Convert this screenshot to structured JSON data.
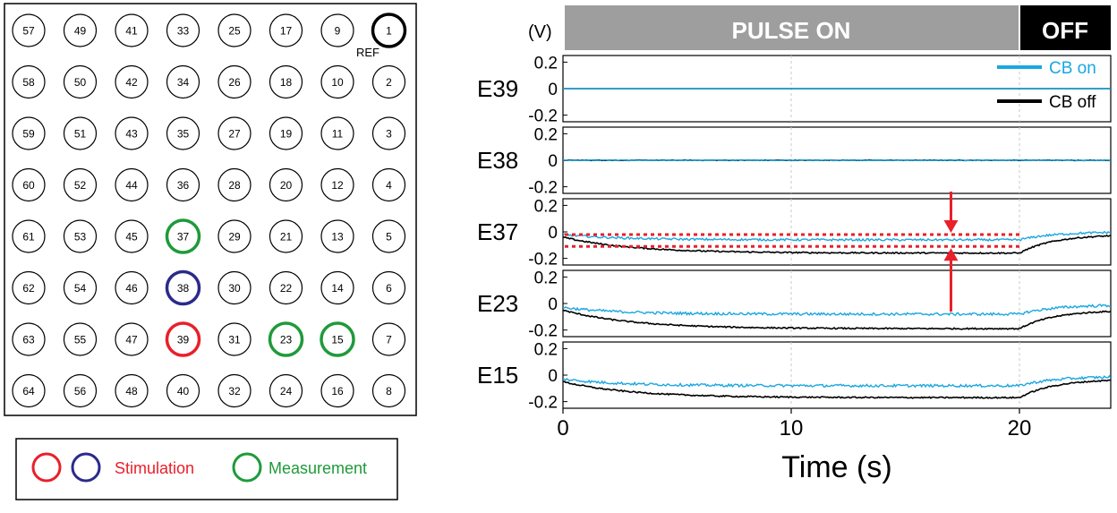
{
  "grid": {
    "rows": [
      [
        57,
        49,
        41,
        33,
        25,
        17,
        9,
        1
      ],
      [
        58,
        50,
        42,
        34,
        26,
        18,
        10,
        2
      ],
      [
        59,
        51,
        43,
        35,
        27,
        19,
        11,
        3
      ],
      [
        60,
        52,
        44,
        36,
        28,
        20,
        12,
        4
      ],
      [
        61,
        53,
        45,
        37,
        29,
        21,
        13,
        5
      ],
      [
        62,
        54,
        46,
        38,
        30,
        22,
        14,
        6
      ],
      [
        63,
        55,
        47,
        39,
        31,
        23,
        15,
        7
      ],
      [
        64,
        56,
        48,
        40,
        32,
        24,
        16,
        8
      ]
    ],
    "ref_label": "REF",
    "ref_electrode": 1,
    "stimulation_red": [
      39
    ],
    "stimulation_blue": [
      38
    ],
    "measurement": [
      37,
      23,
      15
    ]
  },
  "legend_box": {
    "stimulation_label": "Stimulation",
    "measurement_label": "Measurement"
  },
  "colors": {
    "stim_red": "#e8202a",
    "stim_blue": "#2a2a8c",
    "measure_green": "#1f9a3a",
    "ref_black": "#000000",
    "cb_on": "#1aa7e0",
    "cb_off": "#000000",
    "pulse_bar": "#9e9e9e",
    "off_bar": "#000000",
    "annotation_red": "#e8202a"
  },
  "chart_data": {
    "type": "line",
    "unit_label": "(V)",
    "xlabel": "Time (s)",
    "xlim": [
      0,
      24
    ],
    "xticks": [
      0,
      10,
      20
    ],
    "ylim": [
      -0.25,
      0.25
    ],
    "yticks": [
      0.2,
      0,
      -0.2
    ],
    "ytick_labels": [
      "0.2",
      "0",
      "-0.2"
    ],
    "phases": [
      {
        "label": "PULSE ON",
        "start": 0,
        "end": 20
      },
      {
        "label": "OFF",
        "start": 20,
        "end": 24
      }
    ],
    "series_names": [
      "CB on",
      "CB off"
    ],
    "panels": [
      {
        "label": "E39",
        "cb_on": {
          "initial": 0.0,
          "steady": 0.0,
          "tau": 1,
          "recovery_end": 0.0,
          "noise": 0.0
        },
        "cb_off": {
          "initial": 0.0,
          "steady": 0.0,
          "tau": 1,
          "recovery_end": 0.0,
          "noise": 0.0
        }
      },
      {
        "label": "E38",
        "cb_on": {
          "initial": 0.0,
          "steady": 0.0,
          "tau": 1,
          "recovery_end": 0.0,
          "noise": 0.003
        },
        "cb_off": {
          "initial": 0.0,
          "steady": 0.0,
          "tau": 1,
          "recovery_end": 0.0,
          "noise": 0.002
        }
      },
      {
        "label": "E37",
        "cb_on": {
          "initial": -0.02,
          "steady": -0.06,
          "tau": 2.5,
          "recovery_end": 0.0,
          "noise": 0.008
        },
        "cb_off": {
          "initial": -0.04,
          "steady": -0.16,
          "tau": 3,
          "recovery_end": -0.02,
          "noise": 0.005
        }
      },
      {
        "label": "E23",
        "cb_on": {
          "initial": -0.03,
          "steady": -0.08,
          "tau": 2.5,
          "recovery_end": -0.01,
          "noise": 0.01
        },
        "cb_off": {
          "initial": -0.05,
          "steady": -0.19,
          "tau": 3,
          "recovery_end": -0.05,
          "noise": 0.005
        }
      },
      {
        "label": "E15",
        "cb_on": {
          "initial": -0.03,
          "steady": -0.08,
          "tau": 2.5,
          "recovery_end": -0.01,
          "noise": 0.01
        },
        "cb_off": {
          "initial": -0.05,
          "steady": -0.17,
          "tau": 3,
          "recovery_end": -0.03,
          "noise": 0.005
        }
      }
    ],
    "annotation": {
      "panel": "E37",
      "time": 17,
      "band": [
        -0.02,
        -0.11
      ]
    }
  }
}
